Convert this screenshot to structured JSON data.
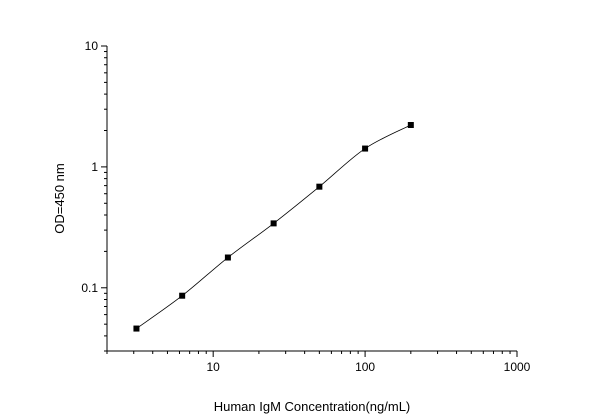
{
  "chart_data": {
    "type": "line",
    "title": "",
    "xlabel": "Human IgM  Concentration(ng/mL)",
    "ylabel": "OD=450 nm",
    "x_scale": "log",
    "y_scale": "log",
    "xlim": [
      2,
      1000
    ],
    "ylim": [
      0.03,
      10
    ],
    "x_ticks": [
      {
        "value": 10,
        "label": "10"
      },
      {
        "value": 100,
        "label": "100"
      },
      {
        "value": 1000,
        "label": "1000"
      }
    ],
    "y_ticks": [
      {
        "value": 0.1,
        "label": "0.1"
      },
      {
        "value": 1,
        "label": "1"
      },
      {
        "value": 10,
        "label": "10"
      }
    ],
    "grid": false,
    "legend": "none",
    "series": [
      {
        "x": [
          3.125,
          6.25,
          12.5,
          25,
          50,
          100,
          200
        ],
        "y": [
          0.046,
          0.086,
          0.178,
          0.341,
          0.686,
          1.418,
          2.221
        ],
        "color": "#000000",
        "marker": "square"
      }
    ]
  }
}
